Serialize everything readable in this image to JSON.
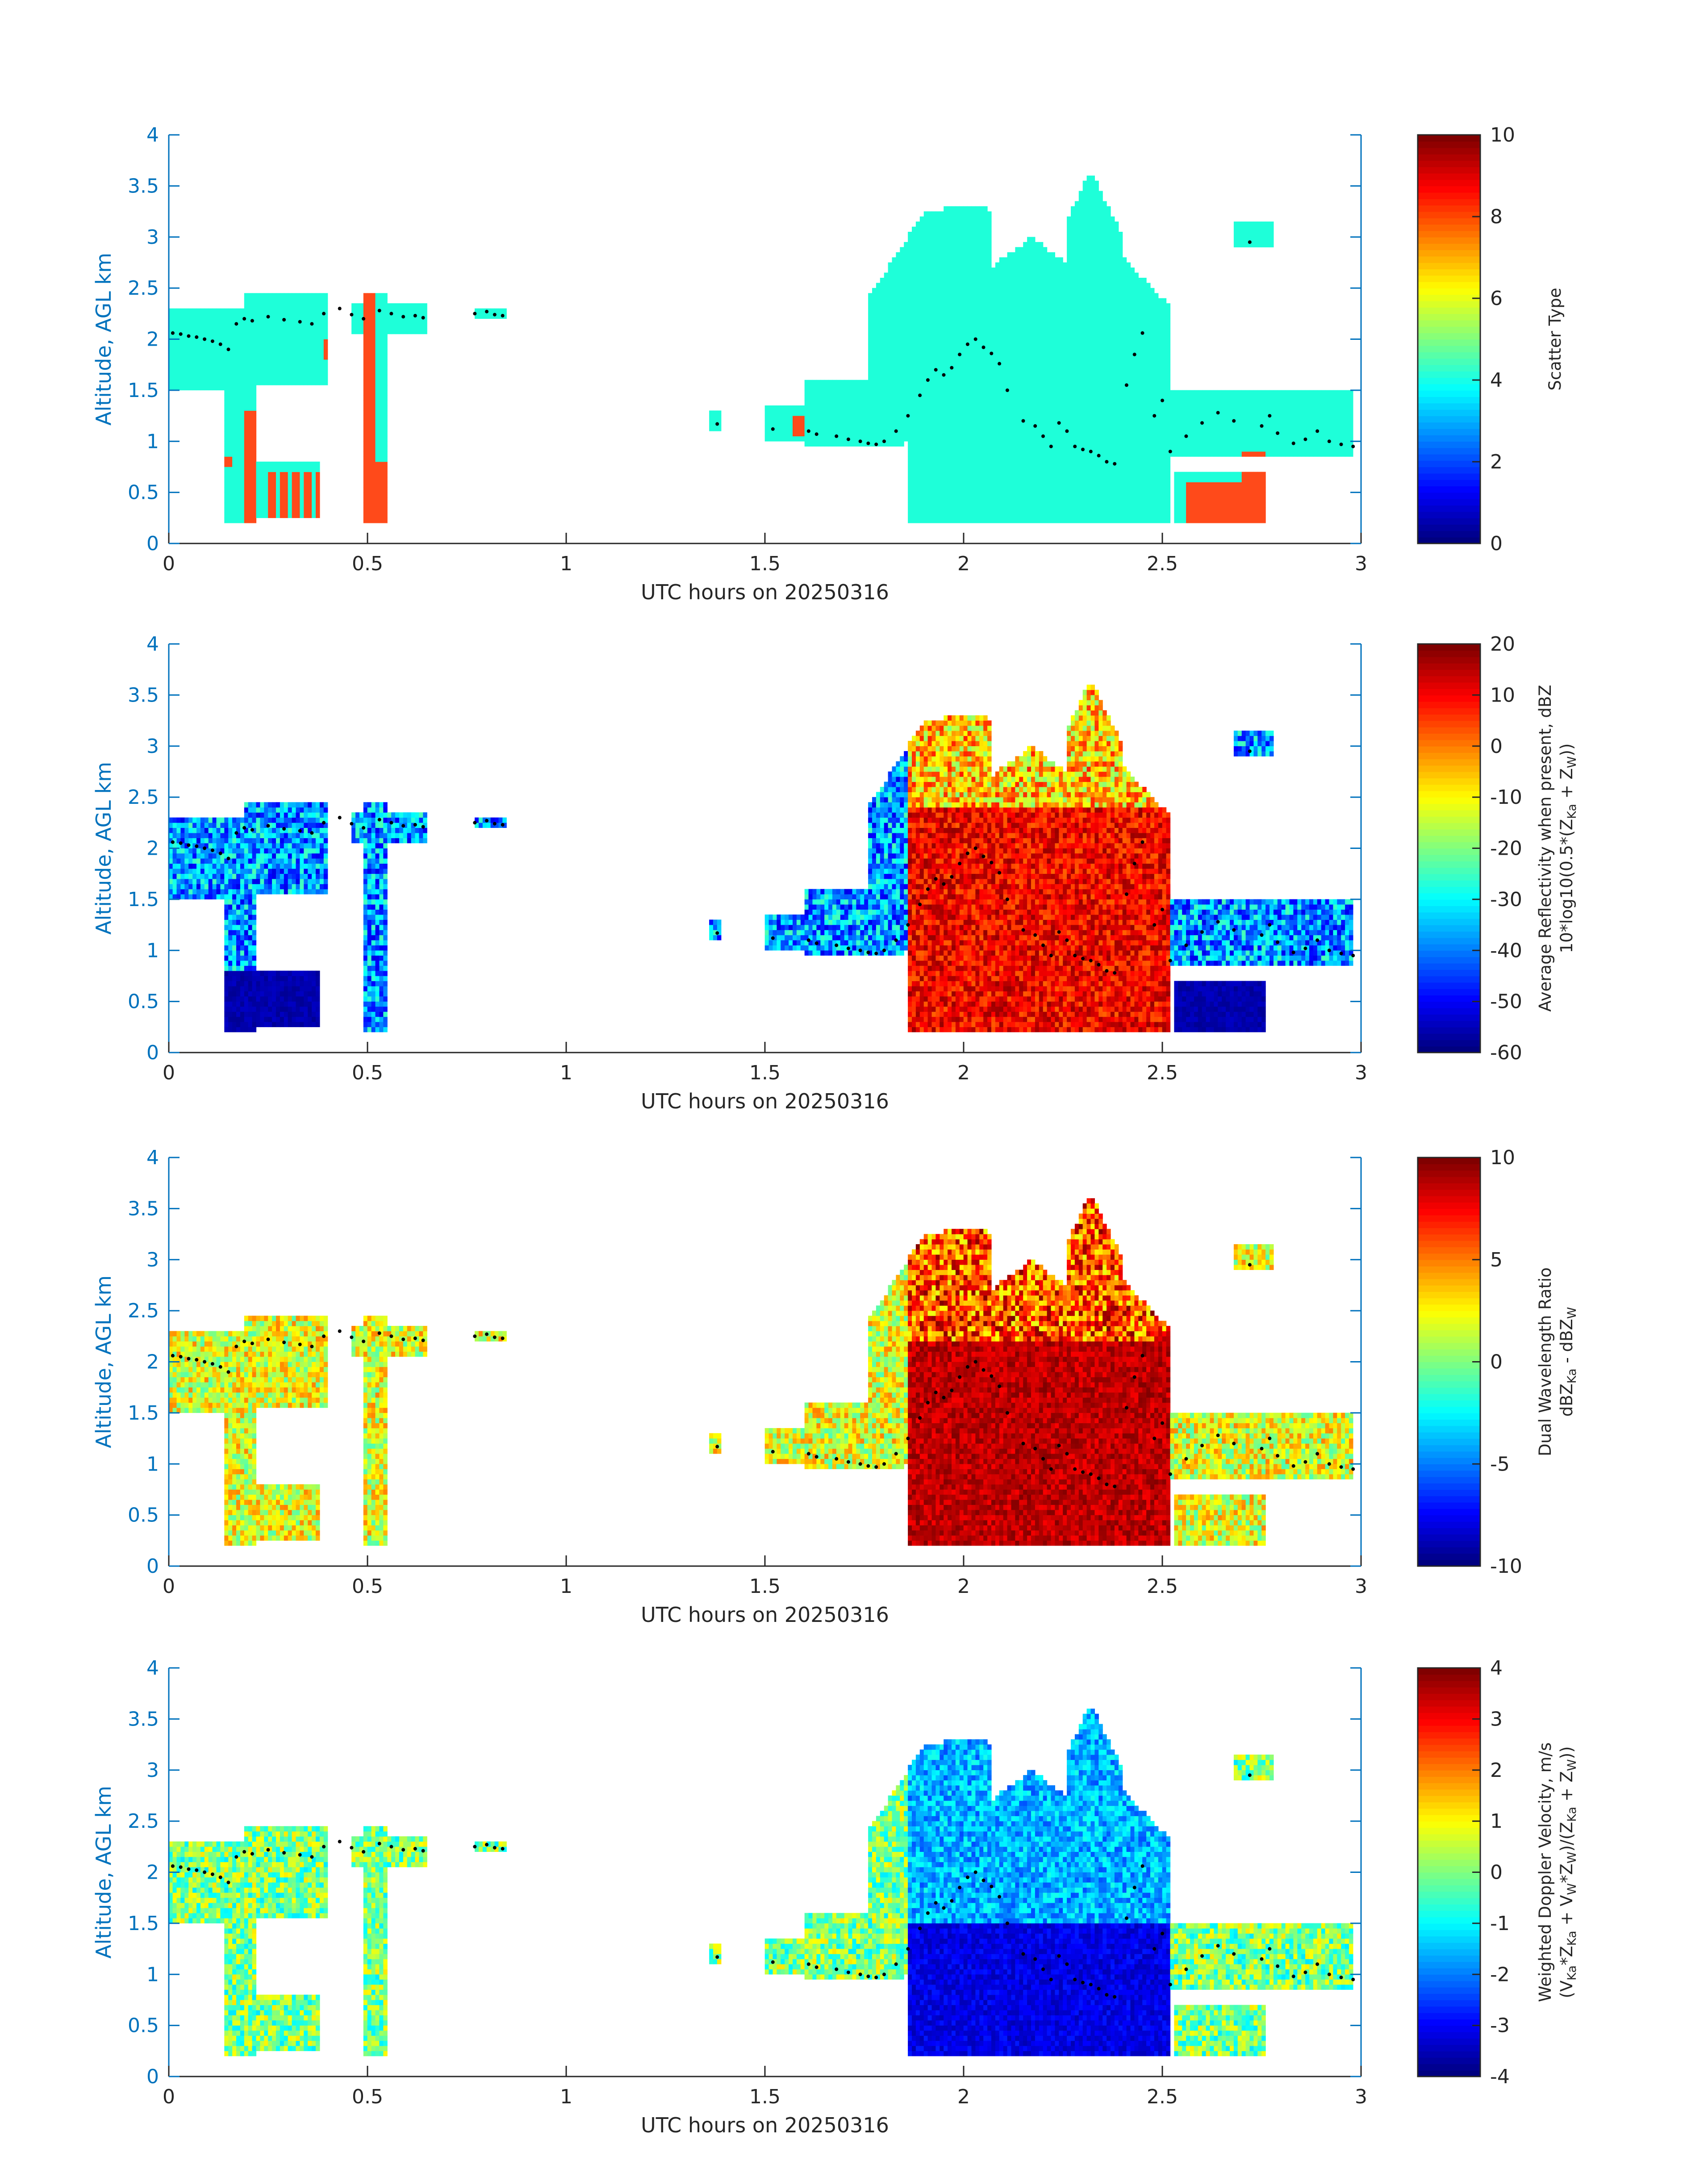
{
  "colors": {
    "axis_blue": "#0072BD",
    "text": "#262626",
    "scatter_cloud": "#1EFFD9",
    "scatter_precip": "#FF4A1A"
  },
  "shared": {
    "xlabel": "UTC hours on 20250316",
    "ylabel": "Altitude, AGL km",
    "xticks": [
      "0",
      "0.5",
      "1",
      "1.5",
      "2",
      "2.5",
      "3"
    ],
    "yticks": [
      "0",
      "0.5",
      "1",
      "1.5",
      "2",
      "2.5",
      "3",
      "3.5",
      "4"
    ]
  },
  "chart_data": [
    {
      "type": "heatmap",
      "variable": "scatter_type",
      "xlabel": "UTC hours on 20250316",
      "ylabel": "Altitude, AGL km",
      "xlim": [
        0,
        3
      ],
      "ylim": [
        0,
        4
      ],
      "colorbar": {
        "label_lines": [
          "Scatter Type"
        ],
        "ticks": [
          "0",
          "2",
          "4",
          "6",
          "8",
          "10"
        ],
        "range": [
          0,
          10
        ],
        "colormap": "jet"
      },
      "observed_scatter_types": [
        4,
        8
      ],
      "cloud_top_km": 3.65,
      "cloud_top_time_h": 2.32
    },
    {
      "type": "heatmap",
      "variable": "average_reflectivity",
      "xlabel": "UTC hours on 20250316",
      "ylabel": "Altitude, AGL km",
      "xlim": [
        0,
        3
      ],
      "ylim": [
        0,
        4
      ],
      "colorbar": {
        "label_lines": [
          "Average Reflectivity when present, dBZ",
          "10*log10(0.5*(Z",
          "Ka",
          " + Z",
          "W",
          "))"
        ],
        "ticks": [
          "-60",
          "-50",
          "-40",
          "-30",
          "-20",
          "-10",
          "0",
          "10",
          "20"
        ],
        "range": [
          -60,
          20
        ],
        "colormap": "jet"
      },
      "value_range_dBZ": [
        -60,
        20
      ]
    },
    {
      "type": "heatmap",
      "variable": "dual_wavelength_ratio",
      "xlabel": "UTC hours on 20250316",
      "ylabel": "Altitude, AGL km",
      "xlim": [
        0,
        3
      ],
      "ylim": [
        0,
        4
      ],
      "colorbar": {
        "label_lines": [
          "Dual Wavelength Ratio",
          "dBZ",
          "Ka",
          " - dBZ",
          "W"
        ],
        "ticks": [
          "-10",
          "-5",
          "0",
          "5",
          "10"
        ],
        "range": [
          -10,
          10
        ],
        "colormap": "jet"
      },
      "value_range_dB": [
        -10,
        10
      ]
    },
    {
      "type": "heatmap",
      "variable": "weighted_doppler_velocity",
      "xlabel": "UTC hours on 20250316",
      "ylabel": "Altitude, AGL km",
      "xlim": [
        0,
        3
      ],
      "ylim": [
        0,
        4
      ],
      "colorbar": {
        "label_lines": [
          "Weighted Doppler Velocity, m/s",
          "(V",
          "Ka",
          "*Z",
          "Ka",
          " + V",
          "W",
          "*Z",
          "W",
          ")/(Z",
          "Ka",
          " + Z",
          "W",
          "))"
        ],
        "ticks": [
          "-4",
          "-3",
          "-2",
          "-1",
          "0",
          "1",
          "2",
          "3",
          "4"
        ],
        "range": [
          -4,
          4
        ],
        "colormap": "jet"
      },
      "value_range_ms": [
        -4,
        4
      ]
    }
  ],
  "overlay_points": {
    "description_label": "",
    "x": [
      0.01,
      0.03,
      0.05,
      0.07,
      0.09,
      0.11,
      0.13,
      0.15,
      0.17,
      0.19,
      0.21,
      0.25,
      0.29,
      0.33,
      0.36,
      0.39,
      0.43,
      0.46,
      0.49,
      0.53,
      0.56,
      0.59,
      0.62,
      0.64,
      0.77,
      0.8,
      0.82,
      0.84,
      1.38,
      1.52,
      1.61,
      1.63,
      1.68,
      1.71,
      1.74,
      1.76,
      1.78,
      1.8,
      1.83,
      1.86,
      1.89,
      1.91,
      1.93,
      1.95,
      1.97,
      1.99,
      2.01,
      2.03,
      2.05,
      2.07,
      2.09,
      2.11,
      2.15,
      2.18,
      2.2,
      2.22,
      2.24,
      2.26,
      2.28,
      2.3,
      2.32,
      2.34,
      2.36,
      2.38,
      2.41,
      2.43,
      2.45,
      2.48,
      2.5,
      2.52,
      2.56,
      2.6,
      2.64,
      2.68,
      2.72,
      2.75,
      2.77,
      2.79,
      2.83,
      2.86,
      2.89,
      2.92,
      2.95,
      2.98
    ],
    "y": [
      2.06,
      2.05,
      2.03,
      2.02,
      2.0,
      1.98,
      1.95,
      1.9,
      2.15,
      2.2,
      2.18,
      2.22,
      2.19,
      2.17,
      2.15,
      2.25,
      2.3,
      2.24,
      2.2,
      2.28,
      2.25,
      2.22,
      2.23,
      2.21,
      2.25,
      2.27,
      2.24,
      2.23,
      1.17,
      1.12,
      1.1,
      1.07,
      1.05,
      1.02,
      1.0,
      0.98,
      0.97,
      1.0,
      1.1,
      1.25,
      1.45,
      1.6,
      1.7,
      1.65,
      1.72,
      1.85,
      1.95,
      2.0,
      1.92,
      1.86,
      1.76,
      1.5,
      1.2,
      1.15,
      1.05,
      0.95,
      1.18,
      1.1,
      0.95,
      0.92,
      0.9,
      0.86,
      0.8,
      0.78,
      1.55,
      1.85,
      2.06,
      1.25,
      1.4,
      0.9,
      1.05,
      1.18,
      1.28,
      1.2,
      2.95,
      1.15,
      1.25,
      1.08,
      0.98,
      1.02,
      1.1,
      1.0,
      0.97,
      0.95
    ]
  }
}
